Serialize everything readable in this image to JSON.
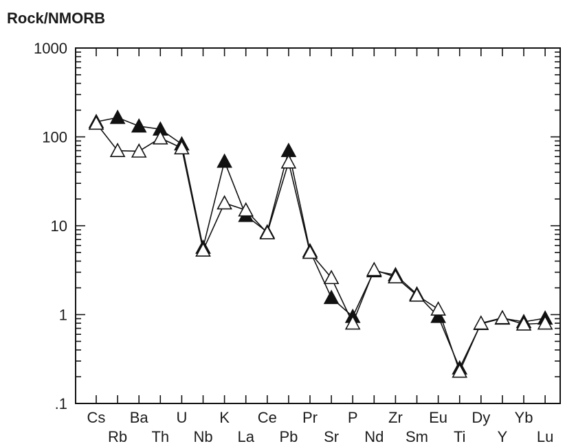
{
  "chart_data": {
    "type": "line",
    "title": "Rock/NMORB",
    "y_scale": "log",
    "ylim": [
      0.1,
      1000
    ],
    "y_ticks": [
      {
        "value": 1000,
        "label": "1000"
      },
      {
        "value": 100,
        "label": "100"
      },
      {
        "value": 10,
        "label": "10"
      },
      {
        "value": 1,
        "label": "1"
      },
      {
        "value": 0.1,
        "label": ".1"
      }
    ],
    "grid": false,
    "categories": [
      "Cs",
      "Rb",
      "Ba",
      "Th",
      "U",
      "Nb",
      "K",
      "La",
      "Ce",
      "Pb",
      "Pr",
      "Sr",
      "P",
      "Nd",
      "Zr",
      "Sm",
      "Eu",
      "Ti",
      "Dy",
      "Y",
      "Yb",
      "Lu"
    ],
    "series": [
      {
        "marker": "filled-triangle",
        "color": "#111111",
        "values": [
          148,
          165,
          132,
          122,
          83,
          5.7,
          53,
          13,
          8.5,
          70,
          5.2,
          1.55,
          0.95,
          3.1,
          2.8,
          1.7,
          0.95,
          0.25,
          0.79,
          0.91,
          0.83,
          0.91
        ]
      },
      {
        "marker": "open-triangle",
        "color": "#111111",
        "values": [
          142,
          70,
          69,
          97,
          75,
          5.3,
          18,
          15,
          8.3,
          52,
          5.0,
          2.6,
          0.8,
          3.2,
          2.65,
          1.65,
          1.15,
          0.23,
          0.8,
          0.92,
          0.78,
          0.8
        ]
      }
    ]
  }
}
